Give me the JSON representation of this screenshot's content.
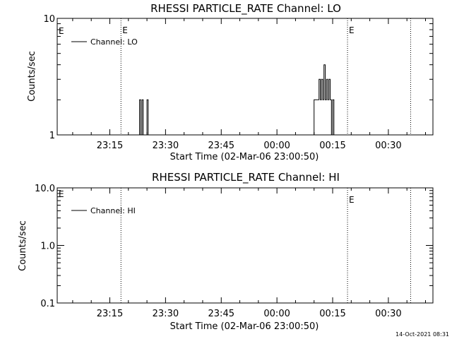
{
  "timestamp": "14-Oct-2021 08:31",
  "chart_data": [
    {
      "type": "line",
      "id": "lo",
      "title": "RHESSI PARTICLE_RATE Channel: LO",
      "xlabel": "Start Time (02-Mar-06 23:00:50)",
      "ylabel": "Counts/sec",
      "yscale": "log",
      "ylim": [
        1,
        10
      ],
      "yticks": [
        {
          "value": 1,
          "label": "1"
        },
        {
          "value": 10,
          "label": "10"
        }
      ],
      "xlim": [
        "02-Mar-06 23:00:50",
        "03-Mar-06 00:42:00"
      ],
      "xticks": [
        {
          "value": "23:15:00",
          "label": "23:15"
        },
        {
          "value": "23:30:00",
          "label": "23:30"
        },
        {
          "value": "23:45:00",
          "label": "23:45"
        },
        {
          "value": "00:00:00",
          "label": "00:00"
        },
        {
          "value": "00:15:00",
          "label": "00:15"
        },
        {
          "value": "00:30:00",
          "label": "00:30"
        }
      ],
      "legend": {
        "label": "Channel: LO",
        "placement": "top-left"
      },
      "event_lines": [
        {
          "time": "23:18:00",
          "label": "E"
        },
        {
          "time": "00:19:00",
          "label": "E"
        },
        {
          "time": "00:36:00",
          "label": ""
        }
      ],
      "left_marker": "E",
      "series": [
        {
          "name": "Channel: LO",
          "points": [
            [
              "23:22:40",
              1
            ],
            [
              "23:23:00",
              2
            ],
            [
              "23:23:20",
              1
            ],
            [
              "23:23:40",
              2
            ],
            [
              "23:24:00",
              1
            ],
            [
              "23:24:40",
              1
            ],
            [
              "23:25:00",
              2
            ],
            [
              "23:25:20",
              1
            ],
            [
              "00:09:40",
              1
            ],
            [
              "00:10:00",
              2
            ],
            [
              "00:11:00",
              2
            ],
            [
              "00:11:20",
              3
            ],
            [
              "00:11:40",
              2
            ],
            [
              "00:12:00",
              3
            ],
            [
              "00:12:20",
              2
            ],
            [
              "00:12:40",
              4
            ],
            [
              "00:13:00",
              2
            ],
            [
              "00:13:20",
              3
            ],
            [
              "00:13:40",
              2
            ],
            [
              "00:14:00",
              3
            ],
            [
              "00:14:20",
              2
            ],
            [
              "00:14:40",
              1
            ],
            [
              "00:15:00",
              2
            ],
            [
              "00:15:20",
              1
            ]
          ]
        }
      ]
    },
    {
      "type": "line",
      "id": "hi",
      "title": "RHESSI PARTICLE_RATE Channel: HI",
      "xlabel": "Start Time (02-Mar-06 23:00:50)",
      "ylabel": "Counts/sec",
      "yscale": "log",
      "ylim": [
        0.1,
        10
      ],
      "yticks": [
        {
          "value": 0.1,
          "label": "0.1"
        },
        {
          "value": 1,
          "label": "1.0"
        },
        {
          "value": 10,
          "label": "10.0"
        }
      ],
      "xlim": [
        "02-Mar-06 23:00:50",
        "03-Mar-06 00:42:00"
      ],
      "xticks": [
        {
          "value": "23:15:00",
          "label": "23:15"
        },
        {
          "value": "23:30:00",
          "label": "23:30"
        },
        {
          "value": "23:45:00",
          "label": "23:45"
        },
        {
          "value": "00:00:00",
          "label": "00:00"
        },
        {
          "value": "00:15:00",
          "label": "00:15"
        },
        {
          "value": "00:30:00",
          "label": "00:30"
        }
      ],
      "legend": {
        "label": "Channel: HI",
        "placement": "top-left"
      },
      "event_lines": [
        {
          "time": "23:18:00",
          "label": ""
        },
        {
          "time": "00:19:00",
          "label": "E"
        },
        {
          "time": "00:36:00",
          "label": ""
        }
      ],
      "left_marker": "E",
      "series": [
        {
          "name": "Channel: HI",
          "points": []
        }
      ]
    }
  ]
}
